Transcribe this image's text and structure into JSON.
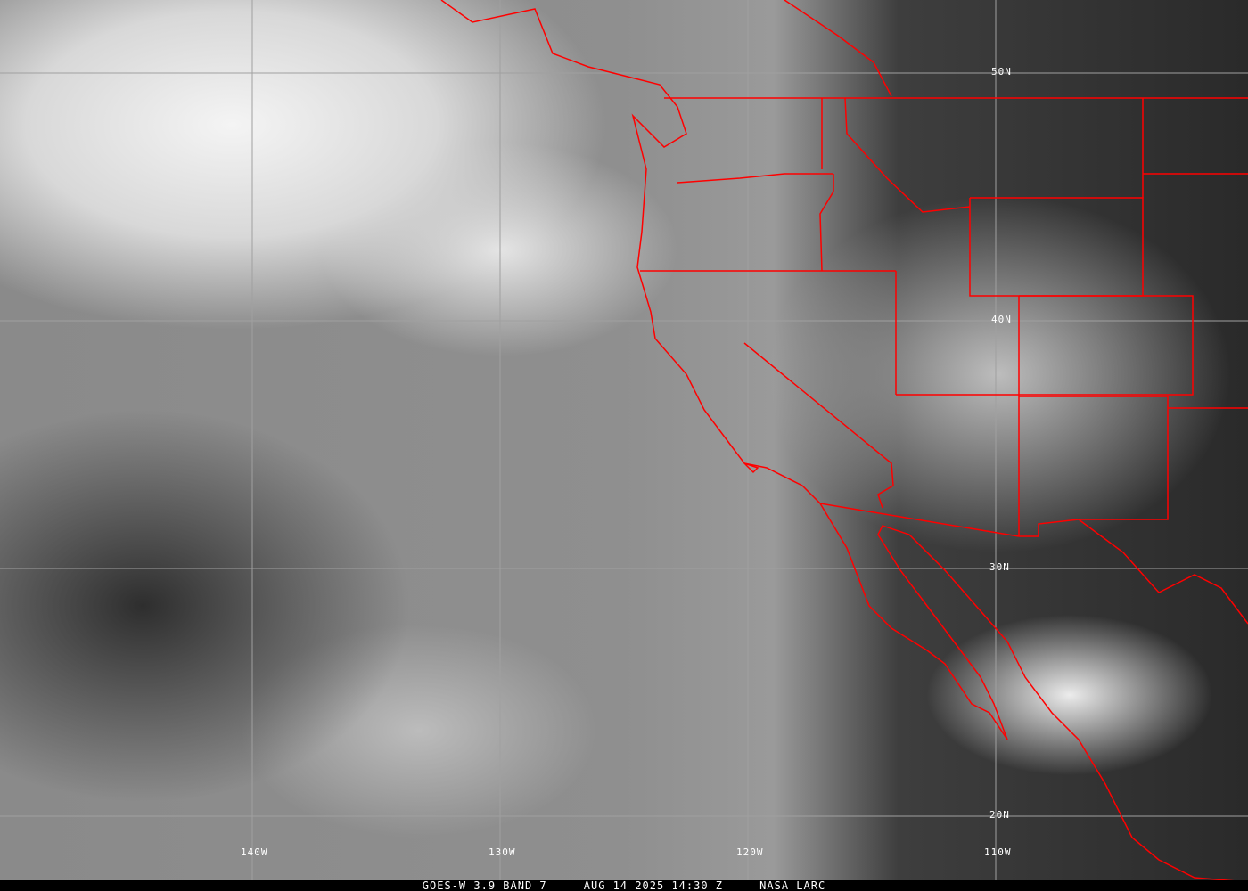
{
  "caption": {
    "satellite": "GOES-W 3.9 BAND 7",
    "datetime": "AUG 14 2025 14:30 Z",
    "source": "NASA LARC"
  },
  "lat_labels": [
    "50N",
    "40N",
    "30N",
    "20N"
  ],
  "lon_labels": [
    "140W",
    "130W",
    "120W",
    "110W"
  ],
  "colors": {
    "borders": "#ff0000",
    "grid": "#9a9a9a",
    "labels": "#ffffff"
  }
}
